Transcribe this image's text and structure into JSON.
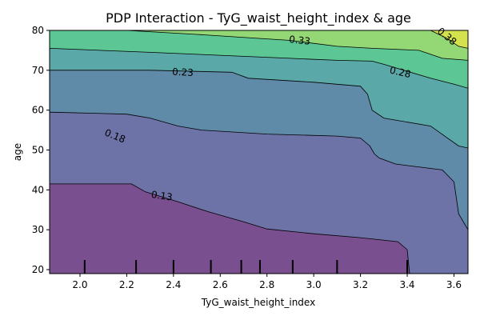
{
  "chart_data": {
    "type": "contour",
    "title": "PDP Interaction - TyG_waist_height_index & age",
    "xlabel": "TyG_waist_height_index",
    "ylabel": "age",
    "xlim": [
      1.87,
      3.66
    ],
    "ylim": [
      19,
      80
    ],
    "x_ticks": [
      "2.0",
      "2.2",
      "2.4",
      "2.6",
      "2.8",
      "3.0",
      "3.2",
      "3.4",
      "3.6"
    ],
    "y_ticks": [
      "20",
      "30",
      "40",
      "50",
      "60",
      "70",
      "80"
    ],
    "levels": [
      0.13,
      0.18,
      0.23,
      0.28,
      0.33,
      0.38
    ],
    "level_labels": [
      "0.13",
      "0.18",
      "0.23",
      "0.28",
      "0.33",
      "0.38"
    ],
    "colormap": [
      "#7a4f8f",
      "#6d72a7",
      "#5f8aa8",
      "#5aa8a8",
      "#5cc694",
      "#94d775",
      "#d3e24d"
    ],
    "rug_x": [
      2.02,
      2.24,
      2.4,
      2.56,
      2.69,
      2.77,
      2.91,
      3.1,
      3.4
    ],
    "contours": [
      {
        "level": 0.13,
        "points": [
          [
            1.87,
            41.5
          ],
          [
            2.22,
            41.5
          ],
          [
            2.28,
            39.5
          ],
          [
            2.42,
            37
          ],
          [
            2.55,
            34.5
          ],
          [
            2.7,
            32
          ],
          [
            2.8,
            30.2
          ],
          [
            3.0,
            29
          ],
          [
            3.2,
            28
          ],
          [
            3.36,
            27
          ],
          [
            3.4,
            25
          ],
          [
            3.41,
            19
          ]
        ]
      },
      {
        "level": 0.18,
        "points": [
          [
            1.87,
            59.5
          ],
          [
            2.2,
            59
          ],
          [
            2.3,
            58
          ],
          [
            2.42,
            56
          ],
          [
            2.52,
            55
          ],
          [
            2.8,
            54
          ],
          [
            3.1,
            53.5
          ],
          [
            3.2,
            53
          ],
          [
            3.24,
            51
          ],
          [
            3.26,
            49
          ],
          [
            3.28,
            48
          ],
          [
            3.35,
            46.5
          ],
          [
            3.55,
            45
          ],
          [
            3.6,
            42
          ],
          [
            3.62,
            34
          ],
          [
            3.66,
            30
          ]
        ]
      },
      {
        "level": 0.23,
        "points": [
          [
            1.87,
            70
          ],
          [
            2.3,
            70
          ],
          [
            2.65,
            69.5
          ],
          [
            2.72,
            68
          ],
          [
            3.0,
            67
          ],
          [
            3.2,
            66
          ],
          [
            3.23,
            64
          ],
          [
            3.25,
            60
          ],
          [
            3.3,
            58
          ],
          [
            3.35,
            57.5
          ],
          [
            3.5,
            56
          ],
          [
            3.62,
            51
          ],
          [
            3.66,
            50.5
          ]
        ]
      },
      {
        "level": 0.28,
        "points": [
          [
            1.87,
            75.5
          ],
          [
            2.3,
            74.5
          ],
          [
            2.9,
            73
          ],
          [
            3.1,
            72.5
          ],
          [
            3.25,
            72.3
          ],
          [
            3.3,
            71.5
          ],
          [
            3.5,
            68
          ],
          [
            3.6,
            66.5
          ],
          [
            3.66,
            65.5
          ]
        ]
      },
      {
        "level": 0.33,
        "points": [
          [
            2.2,
            80
          ],
          [
            2.5,
            79
          ],
          [
            2.9,
            77.5
          ],
          [
            3.1,
            76
          ],
          [
            3.25,
            75.5
          ],
          [
            3.45,
            75
          ],
          [
            3.55,
            73
          ],
          [
            3.66,
            72.5
          ]
        ]
      },
      {
        "level": 0.38,
        "points": [
          [
            3.5,
            80
          ],
          [
            3.57,
            78
          ],
          [
            3.62,
            76
          ],
          [
            3.66,
            75.5
          ]
        ]
      }
    ],
    "level_label_positions": [
      {
        "text": "0.13",
        "x": 2.35,
        "y": 38.5,
        "angle": 8
      },
      {
        "text": "0.18",
        "x": 2.15,
        "y": 53.5,
        "angle": 22
      },
      {
        "text": "0.23",
        "x": 2.44,
        "y": 69.5,
        "angle": 3
      },
      {
        "text": "0.28",
        "x": 3.37,
        "y": 69.5,
        "angle": 13
      },
      {
        "text": "0.33",
        "x": 2.94,
        "y": 77.5,
        "angle": 6
      },
      {
        "text": "0.38",
        "x": 3.57,
        "y": 78.5,
        "angle": 40
      }
    ]
  }
}
